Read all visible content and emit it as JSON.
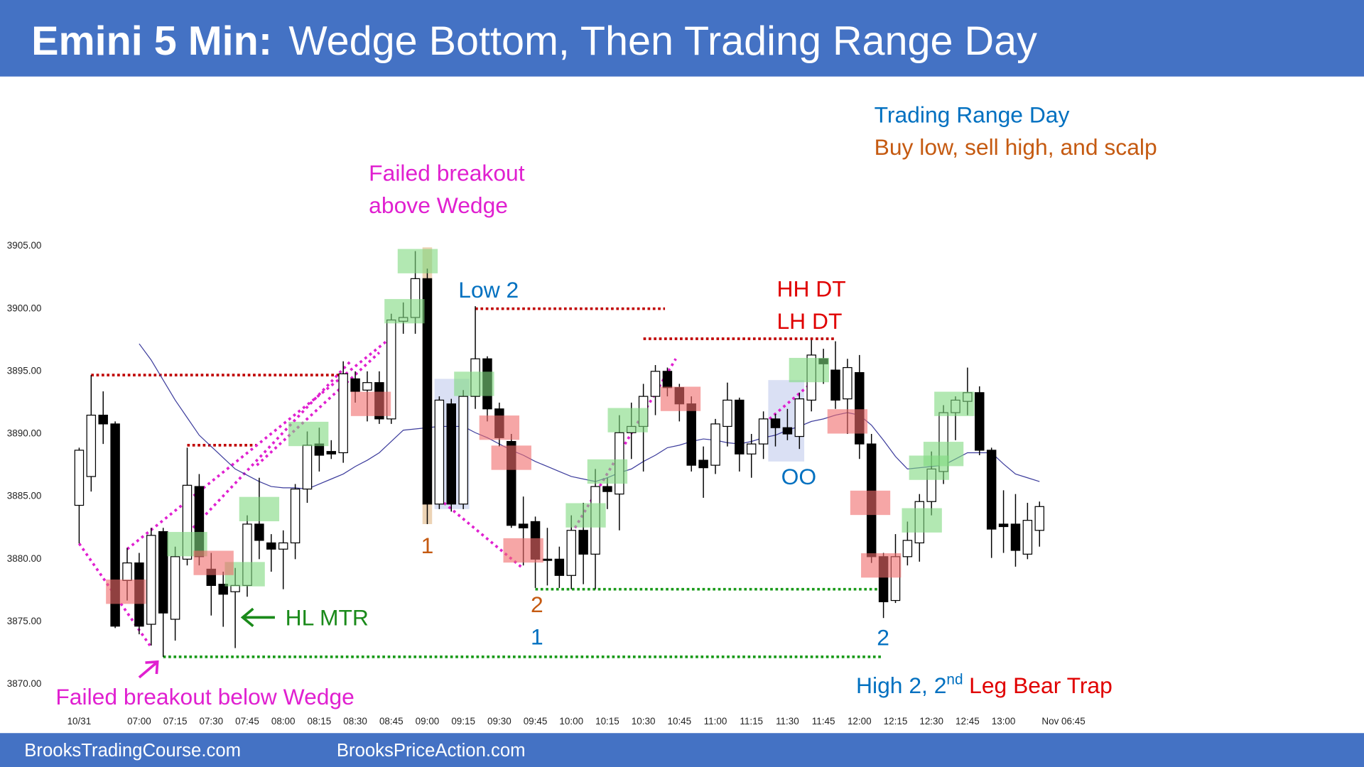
{
  "header": {
    "lead": "Emini 5 Min:",
    "title": "Wedge Bottom, Then Trading Range Day"
  },
  "footer": {
    "left": "BrooksTradingCourse.com",
    "right": "BrooksPriceAction.com"
  },
  "chart_data": {
    "type": "candlestick",
    "categories": [
      "10/31",
      null,
      null,
      null,
      null,
      "07:00",
      null,
      null,
      "07:15",
      null,
      null,
      "07:30",
      null,
      null,
      "07:45",
      null,
      null,
      "08:00",
      null,
      null,
      "08:15",
      null,
      null,
      "08:30",
      null,
      null,
      "08:45",
      null,
      null,
      "09:00",
      null,
      null,
      "09:15",
      null,
      null,
      "09:30",
      null,
      null,
      "09:45",
      null,
      null,
      "10:00",
      null,
      null,
      "10:15",
      null,
      null,
      "10:30",
      null,
      null,
      "10:45",
      null,
      null,
      "11:00",
      null,
      null,
      "11:15",
      null,
      null,
      "11:30",
      null,
      null,
      "11:45",
      null,
      null,
      "12:00",
      null,
      null,
      "12:15",
      null,
      null,
      "12:30",
      null,
      null,
      "12:45",
      null,
      null,
      "13:00",
      null,
      null,
      null,
      null,
      "Nov 06:45"
    ],
    "open": [
      3884.3,
      3886.6,
      3891.5,
      3890.8,
      3878.3,
      3879.7,
      3874.8,
      3882.2,
      3875.2,
      3880.0,
      3885.8,
      3879.2,
      3878.0,
      3877.4,
      3877.9,
      3882.8,
      3881.3,
      3880.8,
      3881.3,
      3885.6,
      3889.2,
      3888.6,
      3888.5,
      3894.4,
      3893.5,
      3894.1,
      3891.2,
      3899.0,
      3899.3,
      3902.4,
      3884.4,
      3892.4,
      3884.4,
      3893.0,
      3896.0,
      3892.0,
      3889.4,
      3882.8,
      3883.0,
      3880.0,
      3880.0,
      3878.7,
      3882.3,
      3880.4,
      3885.8,
      3885.2,
      3890.1,
      3890.6,
      3893.0,
      3895.0,
      3893.7,
      3892.4,
      3887.9,
      3887.5,
      3890.6,
      3892.7,
      3888.4,
      3889.2,
      3891.2,
      3890.5,
      3889.8,
      3892.7,
      3896.0,
      3895.1,
      3892.8,
      3894.9,
      3889.2,
      3880.2,
      3876.7,
      3880.2,
      3881.3,
      3884.6,
      3887.0,
      3891.7,
      3892.6,
      3893.3,
      3888.7,
      3882.8,
      3882.8,
      3880.4,
      3882.3,
      null,
      null
    ],
    "high": [
      3888.9,
      3894.7,
      3893.4,
      3891.0,
      3880.9,
      3880.5,
      3882.5,
      3882.5,
      3881.0,
      3888.9,
      3886.8,
      3880.5,
      3879.0,
      3879.3,
      3883.5,
      3886.5,
      3882.0,
      3882.3,
      3886.0,
      3890.2,
      3890.5,
      3889.5,
      3895.8,
      3895.0,
      3895.0,
      3895.0,
      3899.6,
      3900.5,
      3904.6,
      3903.2,
      3893.0,
      3892.8,
      3893.5,
      3900.2,
      3896.2,
      3892.5,
      3890.0,
      3885.0,
      3883.4,
      3882.5,
      3881.0,
      3883.5,
      3884.5,
      3887.2,
      3886.5,
      3891.5,
      3892.5,
      3894.0,
      3895.5,
      3895.3,
      3894.0,
      3893.0,
      3889.0,
      3891.2,
      3894.1,
      3892.9,
      3890.0,
      3891.8,
      3891.6,
      3892.0,
      3893.3,
      3897.5,
      3896.8,
      3897.4,
      3896.0,
      3896.3,
      3890.0,
      3880.5,
      3882.0,
      3883.0,
      3885.2,
      3888.6,
      3892.3,
      3893.0,
      3895.3,
      3893.8,
      3888.9,
      3885.5,
      3885.2,
      3884.5,
      3884.6,
      null,
      null
    ],
    "low": [
      3881.25,
      3885.4,
      3889.2,
      3874.5,
      3876.7,
      3874.0,
      3873.1,
      3872.2,
      3873.5,
      3879.5,
      3879.5,
      3875.5,
      3874.6,
      3872.9,
      3877.0,
      3880.0,
      3879.0,
      3877.6,
      3880.0,
      3884.5,
      3887.0,
      3888.0,
      3887.7,
      3892.5,
      3891.0,
      3890.8,
      3890.8,
      3898.0,
      3898.0,
      3882.8,
      3884.0,
      3883.8,
      3884.0,
      3892.0,
      3891.0,
      3889.0,
      3882.5,
      3879.5,
      3877.7,
      3877.9,
      3877.7,
      3877.6,
      3878.0,
      3877.6,
      3884.0,
      3882.3,
      3888.0,
      3887.0,
      3891.5,
      3893.0,
      3891.0,
      3887.0,
      3884.9,
      3886.8,
      3889.0,
      3887.0,
      3886.5,
      3888.0,
      3889.0,
      3889.5,
      3888.8,
      3891.8,
      3894.0,
      3892.0,
      3890.0,
      3888.0,
      3879.7,
      3875.3,
      3876.5,
      3879.5,
      3879.8,
      3883.5,
      3886.0,
      3889.5,
      3891.5,
      3888.3,
      3880.1,
      3880.5,
      3879.4,
      3880.0,
      3881.0,
      null,
      null
    ],
    "close": [
      3888.7,
      3891.5,
      3890.8,
      3874.65,
      3879.7,
      3874.65,
      3881.9,
      3875.7,
      3880.2,
      3885.9,
      3880.2,
      3877.9,
      3877.2,
      3877.9,
      3882.8,
      3881.5,
      3880.8,
      3881.3,
      3885.6,
      3889.1,
      3888.3,
      3888.4,
      3894.8,
      3893.4,
      3894.1,
      3891.2,
      3899.1,
      3899.3,
      3902.4,
      3884.4,
      3892.7,
      3884.4,
      3893.0,
      3896.0,
      3892.0,
      3889.7,
      3882.7,
      3882.5,
      3880.0,
      3879.9,
      3878.7,
      3882.3,
      3880.4,
      3885.8,
      3885.4,
      3890.1,
      3890.6,
      3893.0,
      3895.0,
      3893.7,
      3892.4,
      3887.5,
      3887.3,
      3890.8,
      3892.7,
      3888.4,
      3889.2,
      3891.2,
      3890.5,
      3890.0,
      3892.8,
      3896.3,
      3895.6,
      3892.7,
      3895.3,
      3889.2,
      3880.2,
      3876.6,
      3880.2,
      3881.5,
      3884.6,
      3887.2,
      3891.7,
      3892.7,
      3893.3,
      3888.7,
      3882.4,
      3882.6,
      3880.7,
      3883.1,
      3884.2,
      null,
      null
    ],
    "up_color": "#ffffff",
    "down_color": "#000000",
    "moving_average": {
      "color": "#3c3c9c",
      "values": [
        null,
        null,
        null,
        null,
        null,
        3897.2,
        3895.9,
        3894.3,
        3892.7,
        3891.3,
        3889.9,
        3889.0,
        3888.1,
        3887.2,
        3886.7,
        3886.2,
        3885.8,
        3885.7,
        3885.7,
        3885.6,
        3886.0,
        3886.4,
        3886.8,
        3887.4,
        3887.9,
        3888.5,
        3889.4,
        3890.3,
        3890.4,
        3890.5,
        3890.6,
        3890.6,
        3890.6,
        3890.1,
        3889.7,
        3889.2,
        3888.7,
        3888.3,
        3887.8,
        3887.4,
        3887.0,
        3886.6,
        3886.4,
        3886.2,
        3886.5,
        3886.9,
        3887.2,
        3887.8,
        3888.3,
        3888.9,
        3889.1,
        3889.4,
        3889.6,
        3889.5,
        3889.3,
        3889.2,
        3889.4,
        3889.7,
        3889.9,
        3890.3,
        3890.6,
        3891.0,
        3891.2,
        3891.5,
        3891.7,
        3891.5,
        3890.7,
        3889.5,
        3888.2,
        3887.2,
        3887.3,
        3887.4,
        3887.5,
        3888.0,
        3888.5,
        3888.5,
        3888.5,
        3887.6,
        3886.8,
        3886.5,
        3886.2,
        null,
        null
      ]
    },
    "ylim": [
      3866,
      3910
    ],
    "yticks": [
      {
        "value": 3870,
        "label": "3870.00"
      },
      {
        "value": 3875,
        "label": "3875.00"
      },
      {
        "value": 3880,
        "label": "3880.00"
      },
      {
        "value": 3885,
        "label": "3885.00"
      },
      {
        "value": 3890,
        "label": "3890.00"
      },
      {
        "value": 3895,
        "label": "3895.00"
      },
      {
        "value": 3900,
        "label": "3900.00"
      },
      {
        "value": 3905,
        "label": "3905.00"
      }
    ],
    "regions": [
      {
        "x0": 28.6,
        "x1": 29.4,
        "y0": 3882.8,
        "y1": 3904.9,
        "color": "#e9cba8"
      },
      {
        "x0": 29.6,
        "x1": 32.5,
        "y0": 3884.0,
        "y1": 3894.4,
        "color": "#d3daf2"
      },
      {
        "x0": 57.4,
        "x1": 60.4,
        "y0": 3887.8,
        "y1": 3894.3,
        "color": "#d3daf2"
      }
    ],
    "highlights": [
      {
        "x": 28.2,
        "y": 3903.8,
        "color": "#7fd87f"
      },
      {
        "x": 27.1,
        "y": 3899.8,
        "color": "#7fd87f"
      },
      {
        "x": 32.9,
        "y": 3894.0,
        "color": "#7fd87f"
      },
      {
        "x": 19.1,
        "y": 3890.0,
        "color": "#7fd87f"
      },
      {
        "x": 15.0,
        "y": 3884.0,
        "color": "#7fd87f"
      },
      {
        "x": 9.0,
        "y": 3881.2,
        "color": "#7fd87f"
      },
      {
        "x": 13.8,
        "y": 3878.8,
        "color": "#7fd87f"
      },
      {
        "x": 42.2,
        "y": 3883.5,
        "color": "#7fd87f"
      },
      {
        "x": 44.0,
        "y": 3887.0,
        "color": "#7fd87f"
      },
      {
        "x": 45.7,
        "y": 3891.1,
        "color": "#7fd87f"
      },
      {
        "x": 60.8,
        "y": 3895.1,
        "color": "#7fd87f"
      },
      {
        "x": 70.2,
        "y": 3883.1,
        "color": "#7fd87f"
      },
      {
        "x": 70.8,
        "y": 3887.3,
        "color": "#7fd87f"
      },
      {
        "x": 72.0,
        "y": 3888.4,
        "color": "#7fd87f"
      },
      {
        "x": 72.9,
        "y": 3892.4,
        "color": "#7fd87f"
      },
      {
        "x": 3.9,
        "y": 3877.4,
        "color": "#f06a6a"
      },
      {
        "x": 11.2,
        "y": 3879.7,
        "color": "#f06a6a"
      },
      {
        "x": 24.3,
        "y": 3892.4,
        "color": "#f06a6a"
      },
      {
        "x": 35.0,
        "y": 3890.5,
        "color": "#f06a6a"
      },
      {
        "x": 36.0,
        "y": 3888.1,
        "color": "#f06a6a"
      },
      {
        "x": 37.0,
        "y": 3880.7,
        "color": "#f06a6a"
      },
      {
        "x": 50.1,
        "y": 3892.8,
        "color": "#f06a6a"
      },
      {
        "x": 64.0,
        "y": 3891.0,
        "color": "#f06a6a"
      },
      {
        "x": 65.9,
        "y": 3884.5,
        "color": "#f06a6a"
      },
      {
        "x": 66.8,
        "y": 3879.5,
        "color": "#f06a6a"
      }
    ],
    "levels": [
      {
        "y": 3894.7,
        "from": 1,
        "to": 22,
        "color": "#c00000"
      },
      {
        "y": 3889.1,
        "from": 9,
        "to": 14.8,
        "color": "#c00000"
      },
      {
        "y": 3900.0,
        "from": 33,
        "to": 48.8,
        "color": "#c00000"
      },
      {
        "y": 3897.6,
        "from": 47,
        "to": 63,
        "color": "#c00000"
      },
      {
        "y": 3872.2,
        "from": 7,
        "to": 67,
        "color": "#1a9a1a"
      },
      {
        "y": 3877.6,
        "from": 38,
        "to": 67,
        "color": "#1a9a1a"
      }
    ],
    "trendlines": [
      {
        "x0": 0,
        "y0": 3881.25,
        "x1": 5.9,
        "y1": 3873.1,
        "color": "#e020d0"
      },
      {
        "x0": 4,
        "y0": 3880.8,
        "x1": 25.6,
        "y1": 3897.4,
        "color": "#e020d0"
      },
      {
        "x0": 8.8,
        "y0": 3881.8,
        "x1": 22.6,
        "y1": 3895.8,
        "color": "#e020d0"
      },
      {
        "x0": 14.8,
        "y0": 3887.5,
        "x1": 25,
        "y1": 3896.5,
        "color": "#e020d0"
      },
      {
        "x0": 30,
        "y0": 3884.8,
        "x1": 36.8,
        "y1": 3879.4,
        "color": "#e020d0"
      },
      {
        "x0": 41.3,
        "y0": 3882.5,
        "x1": 49.7,
        "y1": 3896.0,
        "color": "#e020d0"
      },
      {
        "x0": 57.5,
        "y0": 3891.2,
        "x1": 61.3,
        "y1": 3894.3,
        "color": "#e020d0"
      }
    ],
    "annotations": [
      {
        "text": "Trading Range Day",
        "color": "#0070c0"
      },
      {
        "text": "Buy low, sell high, and scalp",
        "color": "#c55a11"
      },
      {
        "text": "Failed breakout",
        "color": "#e020d0"
      },
      {
        "text": "above Wedge",
        "color": "#e020d0"
      },
      {
        "text": "Low 2",
        "color": "#0070c0"
      },
      {
        "text": "HH DT",
        "color": "#e00000"
      },
      {
        "text": "LH DT",
        "color": "#e00000"
      },
      {
        "text": "OO",
        "color": "#0070c0"
      },
      {
        "text": "1",
        "color": "#c55a11"
      },
      {
        "text": "2",
        "color": "#c55a11"
      },
      {
        "text": "1",
        "color": "#0070c0"
      },
      {
        "text": "2",
        "color": "#0070c0"
      },
      {
        "text": "HL MTR",
        "color": "#1a8a1a"
      },
      {
        "text": "Failed breakout below Wedge",
        "color": "#e020d0"
      },
      {
        "text": "High 2, 2",
        "color": "#0070c0"
      },
      {
        "text": "nd",
        "color": "#0070c0"
      },
      {
        "text": "Leg Bear Trap",
        "color": "#e00000"
      }
    ]
  }
}
